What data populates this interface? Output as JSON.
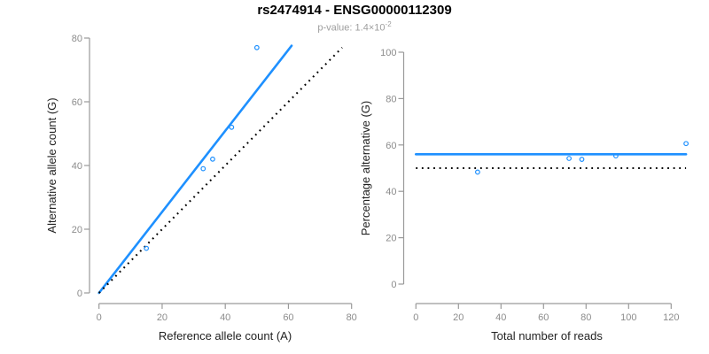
{
  "header": {
    "title": "rs2474914 - ENSG00000112309",
    "subtitle_label": "p-value: ",
    "subtitle_mantissa": "1.4",
    "subtitle_times": "×",
    "subtitle_base": "10",
    "subtitle_exponent": "-2"
  },
  "colors": {
    "accent_blue": "#1E90FF",
    "dotted_black": "#000000",
    "axis_gray": "#9A9A9A",
    "tick_label_gray": "#8C8C8C",
    "axis_title_color": "#222222",
    "subtitle_gray": "#9E9E9E",
    "background": "#FFFFFF"
  },
  "chart_data": [
    {
      "type": "scatter",
      "name": "allele-counts-scatter",
      "xlabel": "Reference allele count (A)",
      "ylabel": "Alternative allele count (G)",
      "xlim": [
        0,
        80
      ],
      "ylim": [
        0,
        80
      ],
      "xticks": [
        0,
        20,
        40,
        60,
        80
      ],
      "yticks": [
        0,
        20,
        40,
        60,
        80
      ],
      "grid": false,
      "points": [
        [
          15,
          14
        ],
        [
          33,
          39
        ],
        [
          36,
          42
        ],
        [
          42,
          52
        ],
        [
          50,
          77
        ]
      ],
      "lines": [
        {
          "name": "fit-line",
          "style": "solid",
          "color_key": "accent_blue",
          "x1": 0,
          "y1": 0,
          "x2": 61,
          "y2": 77.6
        },
        {
          "name": "identity-line",
          "style": "dotted",
          "color_key": "dotted_black",
          "x1": 0,
          "y1": 0,
          "x2": 77,
          "y2": 77
        }
      ]
    },
    {
      "type": "scatter",
      "name": "percentage-vs-coverage-scatter",
      "xlabel": "Total number of reads",
      "ylabel": "Percentage alternative (G)",
      "xlim": [
        0,
        127
      ],
      "ylim": [
        0,
        100
      ],
      "xticks": [
        0,
        20,
        40,
        60,
        80,
        100,
        120
      ],
      "yticks": [
        0,
        20,
        40,
        60,
        80,
        100
      ],
      "grid": false,
      "points": [
        [
          29,
          48.3
        ],
        [
          72,
          54.2
        ],
        [
          78,
          53.8
        ],
        [
          94,
          55.3
        ],
        [
          127,
          60.6
        ]
      ],
      "lines": [
        {
          "name": "mean-percentage-line",
          "style": "solid",
          "color_key": "accent_blue",
          "x1": 0,
          "y1": 56,
          "x2": 127,
          "y2": 56
        },
        {
          "name": "fifty-percent-line",
          "style": "dotted",
          "color_key": "dotted_black",
          "x1": 0,
          "y1": 50,
          "x2": 127,
          "y2": 50
        }
      ]
    }
  ]
}
